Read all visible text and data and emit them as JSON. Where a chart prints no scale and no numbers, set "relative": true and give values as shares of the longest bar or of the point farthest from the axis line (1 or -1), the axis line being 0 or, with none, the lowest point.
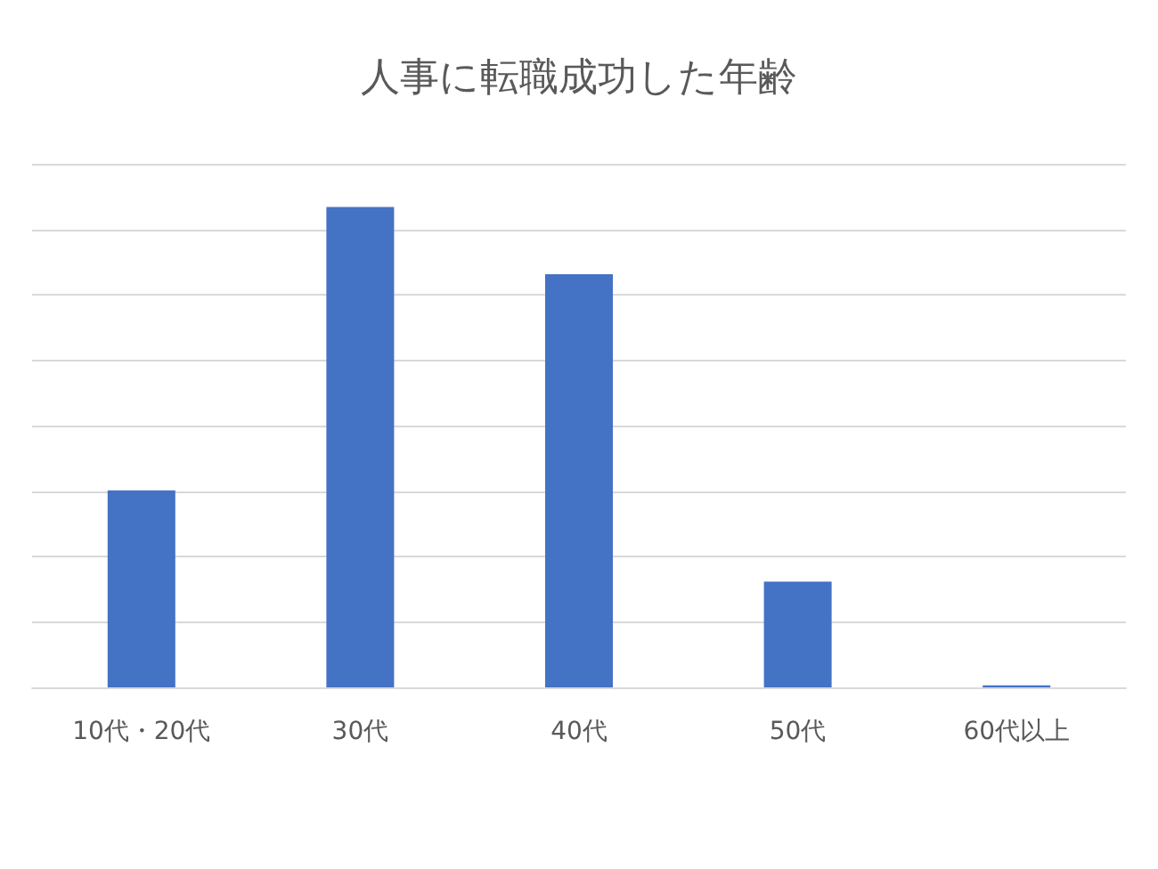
{
  "chart_data": {
    "type": "bar",
    "title": "人事に転職成功した年齢",
    "categories": [
      "10代・20代",
      "30代",
      "40代",
      "50代",
      "60代以上"
    ],
    "values": [
      0.41,
      1,
      0.86,
      0.22,
      0.004
    ],
    "color": "#4472c4",
    "relative": true,
    "grid": "y"
  }
}
